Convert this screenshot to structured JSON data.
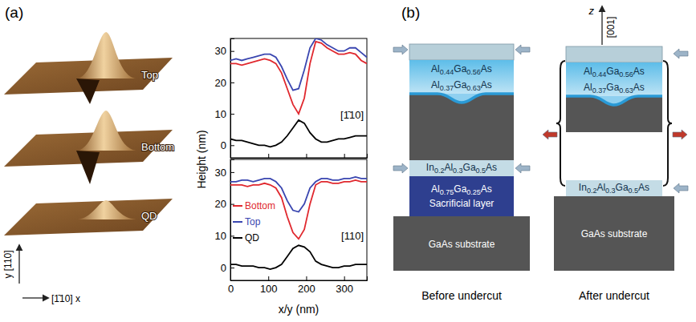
{
  "chart_data": [
    {
      "type": "line",
      "ylabel": "Height (nm)",
      "annotations": [
        "[1̄10]"
      ],
      "x": [
        0,
        15,
        30,
        45,
        60,
        75,
        90,
        105,
        120,
        135,
        150,
        165,
        180,
        195,
        210,
        225,
        240,
        255,
        270,
        285,
        300,
        315,
        330,
        345,
        360
      ],
      "series": [
        {
          "color": "#e0282e",
          "values": [
            26,
            26,
            25.5,
            26,
            26.5,
            27,
            27.5,
            27,
            26,
            23,
            18,
            13,
            10,
            15,
            26,
            33,
            32.5,
            31,
            30,
            29,
            29,
            29.5,
            29,
            27,
            26
          ]
        },
        {
          "color": "#3a46b0",
          "values": [
            27,
            27.5,
            27,
            27.5,
            28,
            28.5,
            29,
            29,
            28,
            25,
            21,
            17.5,
            18,
            24,
            31,
            34,
            33.5,
            32,
            31,
            30,
            30,
            31,
            31,
            29.5,
            28
          ]
        },
        {
          "color": "#000000",
          "values": [
            2,
            1.5,
            1.5,
            1,
            0.5,
            0,
            0,
            -0.5,
            0,
            1,
            3,
            5.5,
            8,
            7,
            4,
            2,
            1,
            1,
            1.5,
            2,
            2,
            2.5,
            3,
            3,
            3
          ]
        }
      ],
      "xlim": [
        0,
        360
      ],
      "ylim": [
        -4,
        34
      ],
      "xticks": [
        0,
        100,
        200,
        300
      ],
      "yticks": [
        0,
        10,
        20,
        30
      ],
      "tick_labels": "y"
    },
    {
      "type": "line",
      "xlabel": "x/y (nm)",
      "annotations": [
        "[110]"
      ],
      "legend": "left",
      "x": [
        0,
        15,
        30,
        45,
        60,
        75,
        90,
        105,
        120,
        135,
        150,
        165,
        180,
        195,
        210,
        225,
        240,
        255,
        270,
        285,
        300,
        315,
        330,
        345,
        360
      ],
      "series": [
        {
          "name": "Bottom",
          "color": "#e0282e",
          "values": [
            26,
            26,
            26,
            25.5,
            26,
            26,
            26.5,
            26,
            25,
            22,
            16,
            11,
            9,
            12,
            20,
            26,
            27,
            27,
            26.5,
            26.5,
            27,
            27,
            27.5,
            27,
            27
          ]
        },
        {
          "name": "Top",
          "color": "#3a46b0",
          "values": [
            27,
            27,
            27.5,
            27.5,
            27,
            27.5,
            28,
            28,
            27,
            25,
            21,
            18,
            17.5,
            20,
            25,
            27,
            28,
            28,
            27.5,
            27.5,
            28,
            28,
            28.5,
            28,
            28
          ]
        },
        {
          "name": "QD",
          "color": "#000000",
          "values": [
            1,
            1,
            0.5,
            0.5,
            0.5,
            0,
            0,
            -0.5,
            0,
            1,
            3.5,
            6,
            7,
            6.5,
            5,
            2,
            1,
            0.5,
            0,
            0,
            0.5,
            0.5,
            1,
            1,
            1
          ]
        }
      ],
      "xlim": [
        0,
        360
      ],
      "ylim": [
        -4,
        34
      ],
      "xticks": [
        0,
        100,
        200,
        300
      ],
      "yticks": [
        0,
        10,
        20,
        30
      ],
      "tick_labels": true
    }
  ],
  "figure": {
    "panel_labels": [
      "(a)",
      "(b)"
    ],
    "afm": {
      "labels": [
        "Top",
        "Bottom",
        "QD"
      ],
      "x_axis": "[1̄10] x",
      "y_axis": "y [110]"
    },
    "diagram": {
      "before": {
        "caption": "Before undercut",
        "cap_layers": [
          "Al0.44Ga0.56As",
          "Al0.37Ga0.63As"
        ],
        "etch_stop": "In0.2Al0.3Ga0.5As",
        "sacrificial": [
          "Al0.75Ga0.25As",
          "Sacrificial layer"
        ],
        "substrate": "GaAs substrate"
      },
      "after": {
        "caption": "After undercut",
        "cap_layers": [
          "Al0.44Ga0.56As",
          "Al0.37Ga0.63As"
        ],
        "etch_stop": "In0.2Al0.3Ga0.5As",
        "substrate": "GaAs substrate",
        "axis_label": "z",
        "axis_direction": "[001]"
      }
    }
  }
}
